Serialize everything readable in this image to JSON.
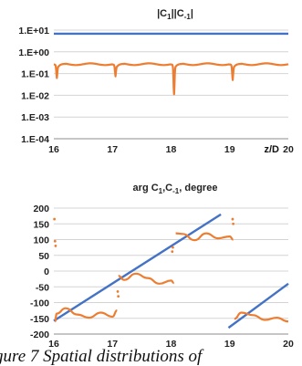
{
  "chart_data": [
    {
      "type": "line",
      "title": "|C1||C-1|",
      "title_main": "|C",
      "title_sub1": "1",
      "title_mid": "||C",
      "title_sub2": "-1",
      "title_end": "|",
      "x_unit_label": "z/D",
      "y_scale": "log",
      "xlim": [
        16,
        20
      ],
      "ylim": [
        0.0001,
        10
      ],
      "x_ticks": [
        "16",
        "17",
        "18",
        "19",
        "20"
      ],
      "y_ticks": [
        "1.E+01",
        "1.E+00",
        "1.E-01",
        "1.E-02",
        "1.E-03",
        "1.E-04"
      ],
      "grid": true,
      "series": [
        {
          "color": "#4472C4",
          "constant": 6.8
        },
        {
          "color": "#ED7D31",
          "baseline": 0.27,
          "dips": [
            {
              "x": 16.05,
              "min": 0.1
            },
            {
              "x": 17.05,
              "min": 0.12
            },
            {
              "x": 18.05,
              "min": 0.017
            },
            {
              "x": 19.05,
              "min": 0.08
            }
          ]
        }
      ]
    },
    {
      "type": "line",
      "title": "arg C1,C-1, degree",
      "title_a": "arg C",
      "title_sub1": "1",
      "title_b": ",C",
      "title_sub2": "-1",
      "title_c": ", degree",
      "xlim": [
        16,
        20
      ],
      "ylim": [
        -200,
        200
      ],
      "x_ticks": [
        "16",
        "17",
        "18",
        "19",
        "20"
      ],
      "y_ticks": [
        "200",
        "150",
        "100",
        "50",
        "0",
        "-50",
        "-100",
        "-150",
        "-200"
      ],
      "grid": true,
      "series": [
        {
          "color": "#4472C4",
          "segments": [
            {
              "x": [
                16.0,
                18.85
              ],
              "y": [
                -158,
                180
              ]
            },
            {
              "x": [
                18.98,
                20.0
              ],
              "y": [
                -180,
                -40
              ]
            }
          ]
        },
        {
          "color": "#ED7D31",
          "segments": [
            {
              "x": [
                16.02,
                16.05,
                16.2,
                16.4,
                16.6,
                16.8,
                17.0,
                17.08
              ],
              "y": [
                -160,
                -135,
                -118,
                -138,
                -148,
                -132,
                -145,
                -125
              ]
            },
            {
              "x": [
                17.1,
                17.2,
                17.4,
                17.6,
                17.8,
                18.0,
                18.05
              ],
              "y": [
                -15,
                -28,
                -8,
                -22,
                -40,
                -30,
                -38
              ]
            },
            {
              "x": [
                18.08,
                18.2,
                18.4,
                18.6,
                18.8,
                19.0,
                19.06
              ],
              "y": [
                120,
                118,
                98,
                120,
                104,
                110,
                100
              ]
            },
            {
              "x": [
                19.08,
                19.2,
                19.4,
                19.6,
                19.8,
                20.0
              ],
              "y": [
                -152,
                -132,
                -140,
                -155,
                -148,
                -160
              ]
            }
          ],
          "scatter": [
            {
              "x": 16.01,
              "y": 165
            },
            {
              "x": 16.02,
              "y": 95
            },
            {
              "x": 16.03,
              "y": 80
            },
            {
              "x": 17.09,
              "y": -65
            },
            {
              "x": 17.1,
              "y": -80
            },
            {
              "x": 18.02,
              "y": 62
            },
            {
              "x": 18.03,
              "y": 75
            },
            {
              "x": 19.05,
              "y": 165
            },
            {
              "x": 19.06,
              "y": 150
            }
          ]
        }
      ]
    }
  ],
  "caption": "gure 7 Spatial distributions of"
}
